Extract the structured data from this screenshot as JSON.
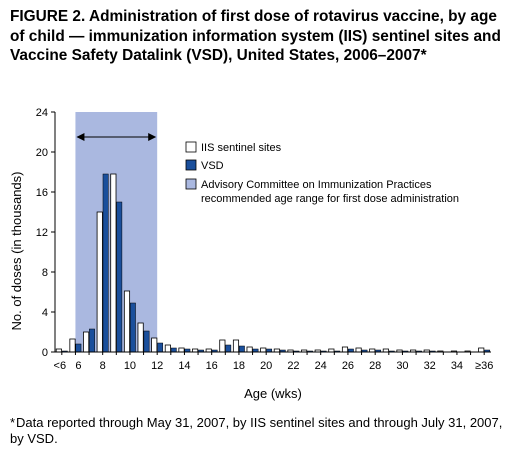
{
  "figure": {
    "title": "FIGURE 2. Administration of first dose of rotavirus vaccine, by age of child — immunization information system (IIS) sentinel sites and Vaccine Safety Datalink (VSD), United States, 2006–2007*",
    "footnote_marker": "*",
    "footnote": "Data reported through May 31, 2007, by IIS sentinel sites and through July 31, 2007, by VSD."
  },
  "colors": {
    "iis": "#ffffff",
    "vsd": "#1a4f9c",
    "acip": "#aab8e0",
    "axis": "#000000"
  },
  "chart_data": {
    "type": "bar",
    "xlabel": "Age (wks)",
    "ylabel": "No. of doses (in thousands)",
    "ylim": [
      0,
      24
    ],
    "yticks": [
      0,
      4,
      8,
      12,
      16,
      20,
      24
    ],
    "grid": false,
    "legend_position": "right",
    "categories": [
      "<6",
      "6",
      "7",
      "8",
      "9",
      "10",
      "11",
      "12",
      "13",
      "14",
      "15",
      "16",
      "17",
      "18",
      "19",
      "20",
      "21",
      "22",
      "23",
      "24",
      "25",
      "26",
      "27",
      "28",
      "29",
      "30",
      "31",
      "32",
      "33",
      "34",
      "35",
      "≥36"
    ],
    "x_tick_labels": [
      "<6",
      "6",
      "8",
      "10",
      "12",
      "14",
      "16",
      "18",
      "20",
      "22",
      "24",
      "26",
      "28",
      "30",
      "32",
      "34",
      "≥36"
    ],
    "series": [
      {
        "name": "IIS sentinel sites",
        "values": [
          0.3,
          1.3,
          2.0,
          14.0,
          17.8,
          6.1,
          2.9,
          1.4,
          0.7,
          0.4,
          0.3,
          0.3,
          1.2,
          1.2,
          0.5,
          0.4,
          0.3,
          0.2,
          0.2,
          0.2,
          0.3,
          0.5,
          0.4,
          0.3,
          0.3,
          0.2,
          0.2,
          0.2,
          0.1,
          0.1,
          0.1,
          0.4
        ]
      },
      {
        "name": "VSD",
        "values": [
          0.1,
          0.8,
          2.3,
          17.8,
          15.0,
          4.9,
          2.1,
          0.9,
          0.4,
          0.3,
          0.2,
          0.2,
          0.7,
          0.6,
          0.3,
          0.3,
          0.2,
          0.1,
          0.1,
          0.1,
          0.1,
          0.3,
          0.2,
          0.2,
          0.1,
          0.1,
          0.1,
          0.1,
          0.0,
          0.0,
          0.0,
          0.2
        ]
      }
    ],
    "shaded_range": {
      "name": "Advisory Committee on Immunization Practices recommended age range for first dose administration",
      "from": "6",
      "to": "12"
    },
    "legend": [
      "IIS sentinel sites",
      "VSD",
      "Advisory Committee on Immunization Practices recommended age range for first dose administration"
    ]
  }
}
